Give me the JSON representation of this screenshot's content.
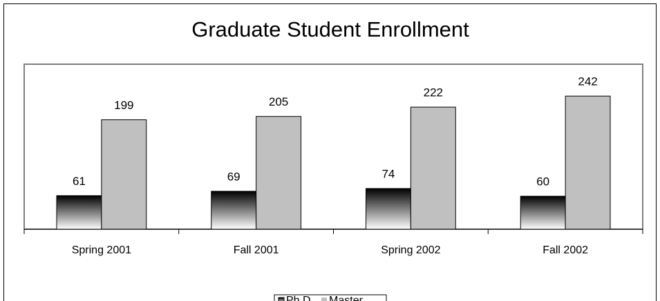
{
  "chart_data": {
    "type": "bar",
    "title": "Graduate Student Enrollment",
    "categories": [
      "Spring 2001",
      "Fall 2001",
      "Spring 2002",
      "Fall 2002"
    ],
    "series": [
      {
        "name": "Ph.D.",
        "color": "#000000",
        "values": [
          61,
          69,
          74,
          60
        ]
      },
      {
        "name": "Master",
        "color": "#c0c0c0",
        "values": [
          199,
          205,
          222,
          242
        ]
      }
    ],
    "ylim": [
      0,
      300
    ],
    "legend": "bottom"
  }
}
